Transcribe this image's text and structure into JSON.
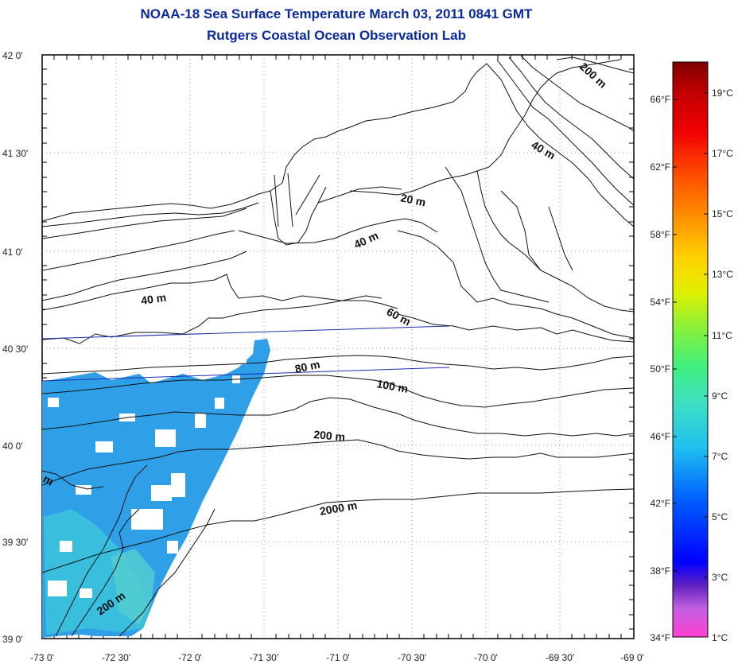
{
  "title_line1": "NOAA-18 Sea Surface Temperature March 03, 2011 0841 GMT",
  "title_line2": "Rutgers Coastal Ocean Observation Lab",
  "lat_labels": [
    "42 0'",
    "41 30'",
    "41 0'",
    "40 30'",
    "40 0'",
    "39 30'",
    "39 0'"
  ],
  "lon_labels": [
    "-73 0'",
    "-72 30'",
    "-72 0'",
    "-71 30'",
    "-71 0'",
    "-70 30'",
    "-70 0'",
    "-69 30'",
    "-69 0'"
  ],
  "contour_labels": [
    "200 m",
    "40 m",
    "20 m",
    "40 m",
    "40 m",
    "60 m",
    "80 m",
    "100 m",
    "200 m",
    "2000 m",
    "200 m",
    "m"
  ],
  "colorbar": {
    "celsius": [
      "19°C",
      "17°C",
      "15°C",
      "13°C",
      "11°C",
      "9°C",
      "7°C",
      "5°C",
      "3°C",
      "1°C"
    ],
    "fahrenheit": [
      "66°F",
      "62°F",
      "58°F",
      "54°F",
      "50°F",
      "46°F",
      "42°F",
      "38°F",
      "34°F"
    ]
  },
  "colors": {
    "title": "#0a2a9c",
    "contour": "#111111",
    "transect": "#1a2db0",
    "sst_main": "#2fa0e8",
    "sst_warm": "#3cc7d9"
  }
}
